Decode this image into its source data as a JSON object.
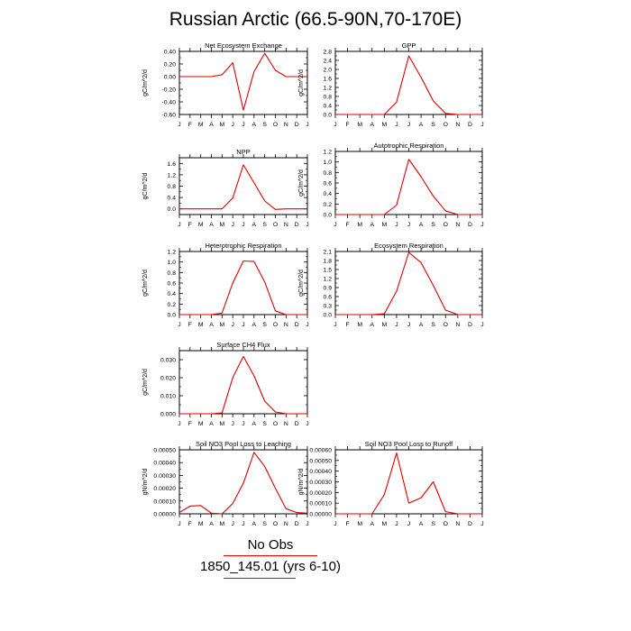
{
  "title": "Russian Arctic (66.5-90N,70-170E)",
  "legend": {
    "obs_label": "No Obs",
    "run_label": "1850_145.01 (yrs 6-10)",
    "run_color": "#e00000"
  },
  "chart_data": [
    {
      "type": "line",
      "title": "Net Ecosystem Exchange",
      "ylabel": "gC/m^2/d",
      "categories": [
        "J",
        "F",
        "M",
        "A",
        "M",
        "J",
        "J",
        "A",
        "S",
        "O",
        "N",
        "D",
        "J"
      ],
      "ylim": [
        -0.6,
        0.4
      ],
      "yticks": [
        -0.6,
        -0.4,
        -0.2,
        0.0,
        0.2,
        0.4
      ],
      "ytick_labels": [
        "-0.60",
        "-0.40",
        "-0.20",
        "0.00",
        "0.20",
        "0.40"
      ],
      "series": [
        {
          "color": "#e00000",
          "values": [
            0.0,
            0.0,
            0.0,
            0.0,
            0.03,
            0.22,
            -0.53,
            0.08,
            0.37,
            0.1,
            0.0,
            0.0,
            0.0
          ]
        }
      ]
    },
    {
      "type": "line",
      "title": "GPP",
      "ylabel": "gC/m^2/d",
      "categories": [
        "J",
        "F",
        "M",
        "A",
        "M",
        "J",
        "J",
        "A",
        "S",
        "O",
        "N",
        "D",
        "J"
      ],
      "ylim": [
        0,
        2.8
      ],
      "yticks": [
        0.0,
        0.4,
        0.8,
        1.2,
        1.6,
        2.0,
        2.4,
        2.8
      ],
      "ytick_labels": [
        "0.0",
        "0.4",
        "0.8",
        "1.2",
        "1.6",
        "2.0",
        "2.4",
        "2.8"
      ],
      "series": [
        {
          "color": "#e00000",
          "values": [
            0.0,
            0.0,
            0.0,
            0.0,
            0.0,
            0.55,
            2.6,
            1.65,
            0.6,
            0.05,
            0.0,
            0.0,
            0.0
          ]
        }
      ]
    },
    {
      "type": "line",
      "title": "NPP",
      "ylabel": "gC/m^2/d",
      "categories": [
        "J",
        "F",
        "M",
        "A",
        "M",
        "J",
        "J",
        "A",
        "S",
        "O",
        "N",
        "D",
        "J"
      ],
      "ylim": [
        -0.2,
        1.8
      ],
      "yticks": [
        0.0,
        0.4,
        0.8,
        1.2,
        1.6
      ],
      "ytick_labels": [
        "0.0",
        "0.4",
        "0.8",
        "1.2",
        "1.6"
      ],
      "series": [
        {
          "color": "#e00000",
          "values": [
            0.0,
            0.0,
            0.0,
            0.0,
            0.0,
            0.38,
            1.55,
            0.92,
            0.28,
            -0.02,
            0.0,
            0.0,
            0.0
          ]
        }
      ]
    },
    {
      "type": "line",
      "title": "Autotrophic Respiration",
      "ylabel": "gC/m^2/d",
      "categories": [
        "J",
        "F",
        "M",
        "A",
        "M",
        "J",
        "J",
        "A",
        "S",
        "O",
        "N",
        "D",
        "J"
      ],
      "ylim": [
        0,
        1.2
      ],
      "yticks": [
        0.0,
        0.2,
        0.4,
        0.6,
        0.8,
        1.0,
        1.2
      ],
      "ytick_labels": [
        "0.0",
        "0.2",
        "0.4",
        "0.6",
        "0.8",
        "1.0",
        "1.2"
      ],
      "series": [
        {
          "color": "#e00000",
          "values": [
            0.0,
            0.0,
            0.0,
            0.0,
            0.0,
            0.18,
            1.05,
            0.72,
            0.35,
            0.07,
            0.0,
            0.0,
            0.0
          ]
        }
      ]
    },
    {
      "type": "line",
      "title": "Heterotrophic Respiration",
      "ylabel": "gC/m^2/d",
      "categories": [
        "J",
        "F",
        "M",
        "A",
        "M",
        "J",
        "J",
        "A",
        "S",
        "O",
        "N",
        "D",
        "J"
      ],
      "ylim": [
        0,
        1.2
      ],
      "yticks": [
        0.0,
        0.2,
        0.4,
        0.6,
        0.8,
        1.0,
        1.2
      ],
      "ytick_labels": [
        "0.0",
        "0.2",
        "0.4",
        "0.6",
        "0.8",
        "1.0",
        "1.2"
      ],
      "series": [
        {
          "color": "#e00000",
          "values": [
            0.0,
            0.0,
            0.0,
            0.0,
            0.03,
            0.6,
            1.02,
            1.01,
            0.62,
            0.07,
            0.0,
            0.0,
            0.0
          ]
        }
      ]
    },
    {
      "type": "line",
      "title": "Ecosystem Respiration",
      "ylabel": "gC/m^2/d",
      "categories": [
        "J",
        "F",
        "M",
        "A",
        "M",
        "J",
        "J",
        "A",
        "S",
        "O",
        "N",
        "D",
        "J"
      ],
      "ylim": [
        0,
        2.1
      ],
      "yticks": [
        0.0,
        0.3,
        0.6,
        0.9,
        1.2,
        1.5,
        1.8,
        2.1
      ],
      "ytick_labels": [
        "0.0",
        "0.3",
        "0.6",
        "0.9",
        "1.2",
        "1.5",
        "1.8",
        "2.1"
      ],
      "series": [
        {
          "color": "#e00000",
          "values": [
            0.0,
            0.0,
            0.0,
            0.0,
            0.03,
            0.78,
            2.07,
            1.73,
            0.97,
            0.15,
            0.0,
            0.0,
            0.0
          ]
        }
      ]
    },
    {
      "type": "line",
      "title": "Surface CH4 Flux",
      "ylabel": "gC/m^2/d",
      "categories": [
        "J",
        "F",
        "M",
        "A",
        "M",
        "J",
        "J",
        "A",
        "S",
        "O",
        "N",
        "D",
        "J"
      ],
      "ylim": [
        0,
        0.035
      ],
      "yticks": [
        0.0,
        0.01,
        0.02,
        0.03
      ],
      "ytick_labels": [
        "0.000",
        "0.010",
        "0.020",
        "0.030"
      ],
      "series": [
        {
          "color": "#e00000",
          "values": [
            0.0,
            0.0,
            0.0,
            0.0,
            0.0005,
            0.02,
            0.0318,
            0.021,
            0.007,
            0.001,
            0.0,
            0.0,
            0.0
          ]
        }
      ]
    },
    {
      "type": "line",
      "title": "Soil NO3 Pool Loss to Leaching",
      "ylabel": "gN/m^2/d",
      "categories": [
        "J",
        "F",
        "M",
        "A",
        "M",
        "J",
        "J",
        "A",
        "S",
        "O",
        "N",
        "D",
        "J"
      ],
      "ylim": [
        0,
        0.0005
      ],
      "yticks": [
        0.0,
        0.0001,
        0.0002,
        0.0003,
        0.0004,
        0.0005
      ],
      "ytick_labels": [
        "0.00000",
        "0.00010",
        "0.00020",
        "0.00030",
        "0.00040",
        "0.00050"
      ],
      "series": [
        {
          "color": "#e00000",
          "values": [
            1e-05,
            6e-05,
            6.5e-05,
            5e-06,
            0.0,
            8e-05,
            0.00024,
            0.00048,
            0.00037,
            0.0002,
            4e-05,
            1e-05,
            5e-06
          ]
        }
      ]
    },
    {
      "type": "line",
      "title": "Soil NO3 Pool Loss to Runoff",
      "ylabel": "gN/m^2/d",
      "categories": [
        "J",
        "F",
        "M",
        "A",
        "M",
        "J",
        "J",
        "A",
        "S",
        "O",
        "N",
        "D",
        "J"
      ],
      "ylim": [
        0,
        0.0006
      ],
      "yticks": [
        0.0,
        0.0001,
        0.0002,
        0.0003,
        0.0004,
        0.0005,
        0.0006
      ],
      "ytick_labels": [
        "0.00000",
        "0.00010",
        "0.00020",
        "0.00030",
        "0.00040",
        "0.00050",
        "0.00060"
      ],
      "series": [
        {
          "color": "#e00000",
          "values": [
            0.0,
            0.0,
            0.0,
            0.0,
            0.00018,
            0.00057,
            0.0001,
            0.00015,
            0.0003,
            2e-05,
            0.0,
            0.0,
            0.0
          ]
        }
      ]
    }
  ]
}
